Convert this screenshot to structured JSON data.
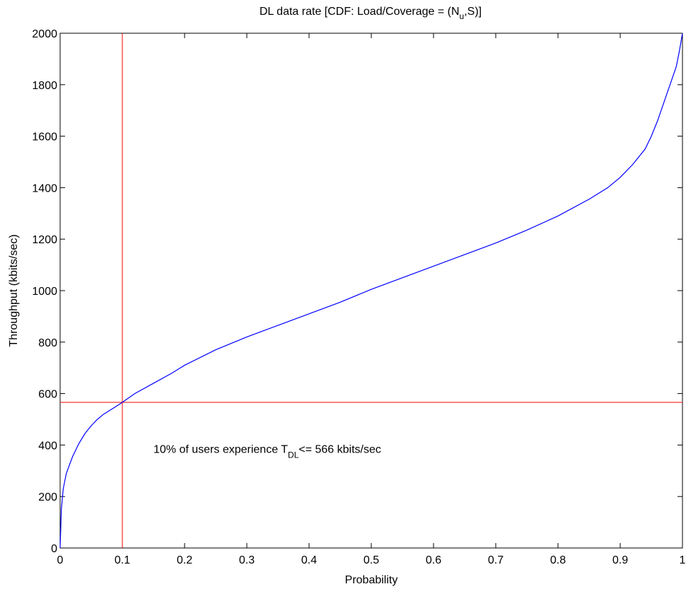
{
  "chart_data": {
    "type": "line",
    "title_main": "DL data rate [CDF:  Load/Coverage = (N",
    "title_sub": "u",
    "title_end": ",S)]",
    "xlabel": "Probability",
    "ylabel": "Throughput (kbits/sec)",
    "xlim": [
      0,
      1
    ],
    "ylim": [
      0,
      2000
    ],
    "xticks": [
      "0",
      "0.1",
      "0.2",
      "0.3",
      "0.4",
      "0.5",
      "0.6",
      "0.7",
      "0.8",
      "0.9",
      "1"
    ],
    "yticks": [
      "0",
      "200",
      "400",
      "600",
      "800",
      "1000",
      "1200",
      "1400",
      "1600",
      "1800",
      "2000"
    ],
    "grid": false,
    "series": [
      {
        "color": "#0000ff",
        "x": [
          0,
          0.002,
          0.005,
          0.01,
          0.02,
          0.03,
          0.04,
          0.05,
          0.06,
          0.07,
          0.08,
          0.09,
          0.1,
          0.12,
          0.15,
          0.18,
          0.2,
          0.25,
          0.3,
          0.35,
          0.4,
          0.45,
          0.5,
          0.55,
          0.6,
          0.65,
          0.7,
          0.75,
          0.8,
          0.85,
          0.88,
          0.9,
          0.92,
          0.94,
          0.95,
          0.96,
          0.97,
          0.98,
          0.99,
          0.995,
          1.0
        ],
        "y": [
          0,
          150,
          230,
          290,
          355,
          405,
          445,
          475,
          500,
          520,
          535,
          550,
          566,
          600,
          640,
          680,
          710,
          770,
          820,
          865,
          910,
          955,
          1005,
          1050,
          1095,
          1140,
          1185,
          1235,
          1290,
          1355,
          1400,
          1440,
          1490,
          1550,
          1600,
          1660,
          1730,
          1800,
          1870,
          1930,
          2000
        ]
      }
    ],
    "reference_lines": {
      "color": "#ff0000",
      "vertical_x": 0.1,
      "horizontal_y": 566
    },
    "annotation": {
      "text_before": "10% of users experience T",
      "subscript": "DL",
      "text_after": "<=  566 kbits/sec",
      "x": 0.15,
      "y": 370
    }
  }
}
